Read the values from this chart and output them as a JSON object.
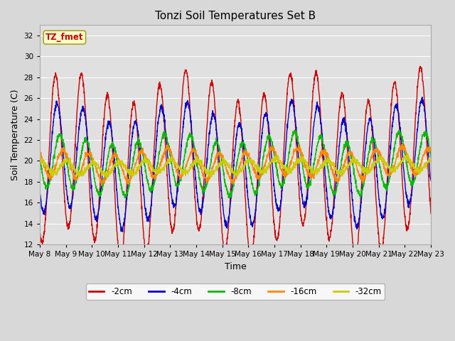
{
  "title": "Tonzi Soil Temperatures Set B",
  "xlabel": "Time",
  "ylabel": "Soil Temperature (C)",
  "ylim": [
    12,
    33
  ],
  "yticks": [
    12,
    14,
    16,
    18,
    20,
    22,
    24,
    26,
    28,
    30,
    32
  ],
  "x_start_day": 8,
  "x_end_day": 23,
  "x_tick_days": [
    8,
    9,
    10,
    11,
    12,
    13,
    14,
    15,
    16,
    17,
    18,
    19,
    20,
    21,
    22,
    23
  ],
  "series": [
    {
      "label": "-2cm",
      "color": "#cc0000",
      "depth_idx": 0
    },
    {
      "label": "-4cm",
      "color": "#0000cc",
      "depth_idx": 1
    },
    {
      "label": "-8cm",
      "color": "#00bb00",
      "depth_idx": 2
    },
    {
      "label": "-16cm",
      "color": "#ff8800",
      "depth_idx": 3
    },
    {
      "label": "-32cm",
      "color": "#cccc00",
      "depth_idx": 4
    }
  ],
  "amplitudes": [
    7.5,
    5.0,
    2.5,
    1.3,
    0.6
  ],
  "base_temps": [
    19.5,
    19.5,
    19.5,
    19.5,
    19.3
  ],
  "phase_lags_days": [
    0.0,
    0.06,
    0.18,
    0.3,
    0.45
  ],
  "bg_color": "#d8d8d8",
  "plot_bg": "#e0e0e0",
  "grid_color": "#ffffff",
  "annotation_text": "TZ_fmet",
  "annotation_color": "#cc0000",
  "annotation_bg": "#ffffcc",
  "annotation_edge": "#999900",
  "figsize": [
    6.4,
    4.8
  ],
  "dpi": 100
}
